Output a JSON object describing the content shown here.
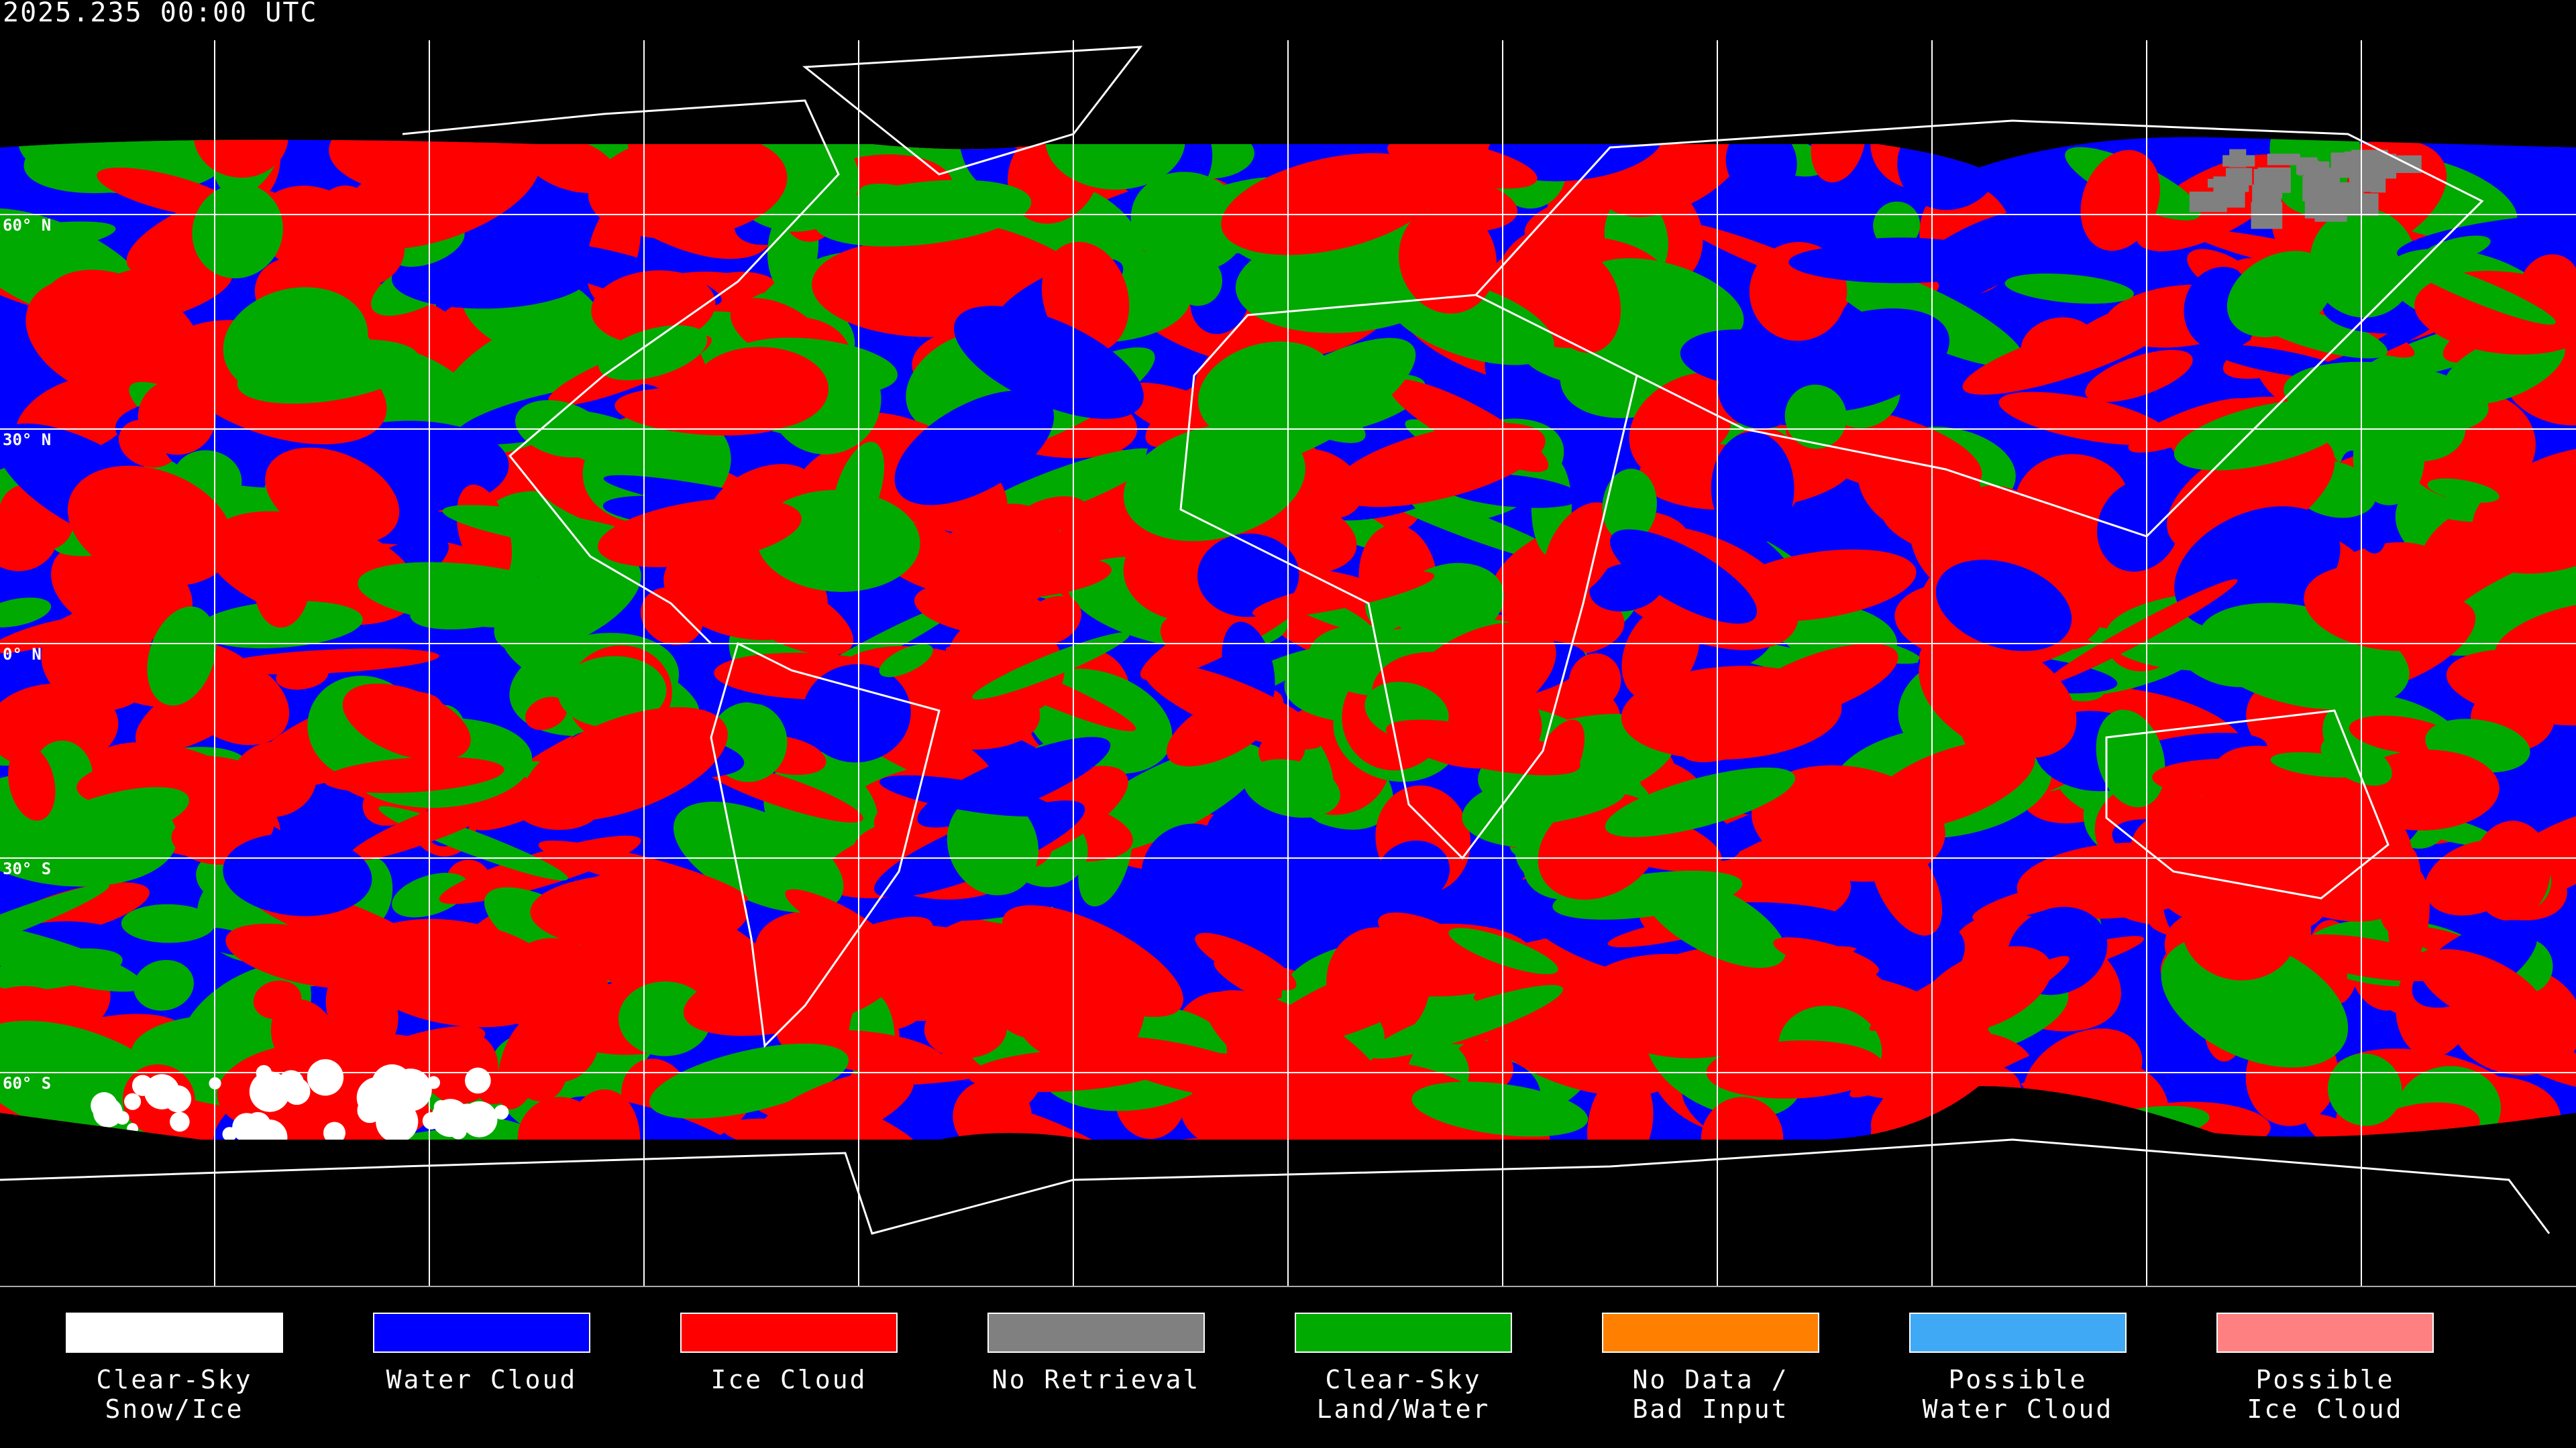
{
  "header": {
    "title": "2025.235 00:00 UTC"
  },
  "map": {
    "projection": "equirectangular",
    "grid": "30-degree latitude/longitude lines",
    "latitude_labels": [
      "60° N",
      "30° N",
      "0° N",
      "30° S",
      "60° S"
    ]
  },
  "legend": {
    "items": [
      {
        "label": "Clear-Sky\nSnow/Ice",
        "color": "#ffffff"
      },
      {
        "label": "Water Cloud",
        "color": "#0000ff"
      },
      {
        "label": "Ice Cloud",
        "color": "#ff0000"
      },
      {
        "label": "No Retrieval",
        "color": "#808080"
      },
      {
        "label": "Clear-Sky\nLand/Water",
        "color": "#00aa00"
      },
      {
        "label": "No Data /\nBad Input",
        "color": "#ff8000"
      },
      {
        "label": "Possible\nWater Cloud",
        "color": "#3fa9f5"
      },
      {
        "label": "Possible\nIce Cloud",
        "color": "#ff8080"
      }
    ]
  }
}
